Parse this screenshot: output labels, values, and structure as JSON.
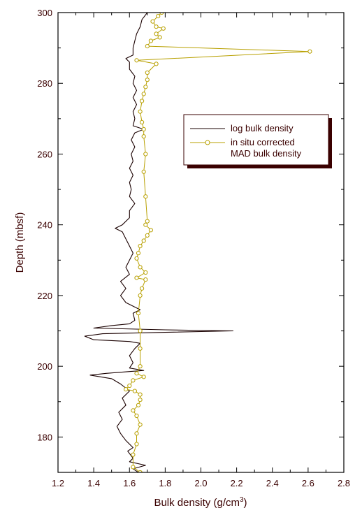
{
  "chart_data": {
    "type": "line",
    "xlabel_main": "Bulk density (g/cm",
    "xlabel_sup": "3",
    "xlabel_tail": ")",
    "ylabel": "Depth (mbsf)",
    "xlim": [
      1.2,
      2.8
    ],
    "ylim": [
      170,
      300
    ],
    "x_ticks": [
      "1.2",
      "1.4",
      "1.6",
      "1.8",
      "2.0",
      "2.2",
      "2.4",
      "2.6",
      "2.8"
    ],
    "y_ticks": [
      "180",
      "200",
      "220",
      "240",
      "260",
      "280",
      "300"
    ],
    "legend_position": "right",
    "colors": {
      "log": "#1a0000",
      "mad": "#b8a000",
      "text": "#3a0000",
      "shadow": "#3a0000"
    },
    "series": [
      {
        "name": "log bulk density",
        "style": "line",
        "points": [
          [
            1.65,
            170
          ],
          [
            1.62,
            171
          ],
          [
            1.69,
            172
          ],
          [
            1.6,
            173
          ],
          [
            1.62,
            174
          ],
          [
            1.59,
            176
          ],
          [
            1.62,
            177
          ],
          [
            1.58,
            179
          ],
          [
            1.55,
            181
          ],
          [
            1.53,
            183
          ],
          [
            1.56,
            185
          ],
          [
            1.54,
            187
          ],
          [
            1.58,
            189
          ],
          [
            1.56,
            191
          ],
          [
            1.6,
            193
          ],
          [
            1.55,
            195
          ],
          [
            1.5,
            196.5
          ],
          [
            1.38,
            197.5
          ],
          [
            1.47,
            198
          ],
          [
            1.6,
            198.5
          ],
          [
            1.68,
            198.8
          ],
          [
            1.6,
            199.5
          ],
          [
            1.62,
            201
          ],
          [
            1.6,
            203
          ],
          [
            1.63,
            205
          ],
          [
            1.66,
            206.5
          ],
          [
            1.6,
            207
          ],
          [
            1.4,
            207.5
          ],
          [
            1.35,
            208.5
          ],
          [
            1.45,
            209.2
          ],
          [
            1.8,
            209.6
          ],
          [
            2.18,
            210
          ],
          [
            1.8,
            210.3
          ],
          [
            1.4,
            210.8
          ],
          [
            1.5,
            211.5
          ],
          [
            1.6,
            212
          ],
          [
            1.63,
            213
          ],
          [
            1.62,
            215
          ],
          [
            1.66,
            216
          ],
          [
            1.58,
            218
          ],
          [
            1.55,
            220
          ],
          [
            1.58,
            222
          ],
          [
            1.55,
            224
          ],
          [
            1.6,
            226
          ],
          [
            1.58,
            228
          ],
          [
            1.6,
            230
          ],
          [
            1.62,
            232
          ],
          [
            1.6,
            234
          ],
          [
            1.58,
            236
          ],
          [
            1.56,
            238
          ],
          [
            1.52,
            239
          ],
          [
            1.56,
            240
          ],
          [
            1.6,
            242
          ],
          [
            1.6,
            244
          ],
          [
            1.63,
            246
          ],
          [
            1.6,
            248
          ],
          [
            1.61,
            250
          ],
          [
            1.6,
            252
          ],
          [
            1.62,
            254
          ],
          [
            1.6,
            256
          ],
          [
            1.62,
            258
          ],
          [
            1.61,
            260
          ],
          [
            1.63,
            262
          ],
          [
            1.61,
            264
          ],
          [
            1.63,
            266
          ],
          [
            1.68,
            267
          ],
          [
            1.62,
            268
          ],
          [
            1.63,
            270
          ],
          [
            1.62,
            272
          ],
          [
            1.64,
            274
          ],
          [
            1.62,
            276
          ],
          [
            1.64,
            278
          ],
          [
            1.62,
            280
          ],
          [
            1.63,
            282
          ],
          [
            1.6,
            284
          ],
          [
            1.6,
            286
          ],
          [
            1.58,
            287
          ],
          [
            1.62,
            288
          ],
          [
            1.62,
            290
          ],
          [
            1.63,
            292
          ],
          [
            1.64,
            294
          ],
          [
            1.66,
            296
          ],
          [
            1.67,
            298
          ],
          [
            1.7,
            300
          ]
        ]
      },
      {
        "name": "in situ corrected MAD bulk density",
        "style": "line-circle",
        "points": [
          [
            1.66,
            170
          ],
          [
            1.62,
            171.5
          ],
          [
            1.62,
            175
          ],
          [
            1.64,
            178
          ],
          [
            1.64,
            181
          ],
          [
            1.66,
            183.5
          ],
          [
            1.64,
            186
          ],
          [
            1.62,
            187.5
          ],
          [
            1.65,
            189
          ],
          [
            1.66,
            190.5
          ],
          [
            1.66,
            192
          ],
          [
            1.63,
            193
          ],
          [
            1.58,
            193.5
          ],
          [
            1.6,
            194.5
          ],
          [
            1.62,
            196
          ],
          [
            1.68,
            197
          ],
          [
            1.64,
            198
          ],
          [
            1.66,
            200
          ],
          [
            1.66,
            205
          ],
          [
            1.66,
            210
          ],
          [
            1.65,
            215
          ],
          [
            1.66,
            220
          ],
          [
            1.67,
            222
          ],
          [
            1.69,
            224.5
          ],
          [
            1.64,
            225
          ],
          [
            1.69,
            226.5
          ],
          [
            1.66,
            228
          ],
          [
            1.64,
            230.5
          ],
          [
            1.65,
            232
          ],
          [
            1.66,
            234
          ],
          [
            1.68,
            235.5
          ],
          [
            1.7,
            237
          ],
          [
            1.72,
            238.5
          ],
          [
            1.69,
            240
          ],
          [
            1.7,
            241
          ],
          [
            1.69,
            248
          ],
          [
            1.68,
            255
          ],
          [
            1.69,
            260
          ],
          [
            1.68,
            265
          ],
          [
            1.68,
            267
          ],
          [
            1.67,
            269
          ],
          [
            1.66,
            272
          ],
          [
            1.67,
            275
          ],
          [
            1.68,
            277
          ],
          [
            1.69,
            279
          ],
          [
            1.7,
            281
          ],
          [
            1.7,
            283
          ],
          [
            1.75,
            285.5
          ],
          [
            1.64,
            286.5
          ],
          [
            2.61,
            289
          ],
          [
            1.7,
            290.5
          ],
          [
            1.72,
            292
          ],
          [
            1.77,
            293
          ],
          [
            1.75,
            294
          ],
          [
            1.79,
            295.5
          ],
          [
            1.75,
            296
          ],
          [
            1.73,
            297.5
          ],
          [
            1.76,
            299
          ],
          [
            1.78,
            300
          ]
        ]
      }
    ]
  }
}
